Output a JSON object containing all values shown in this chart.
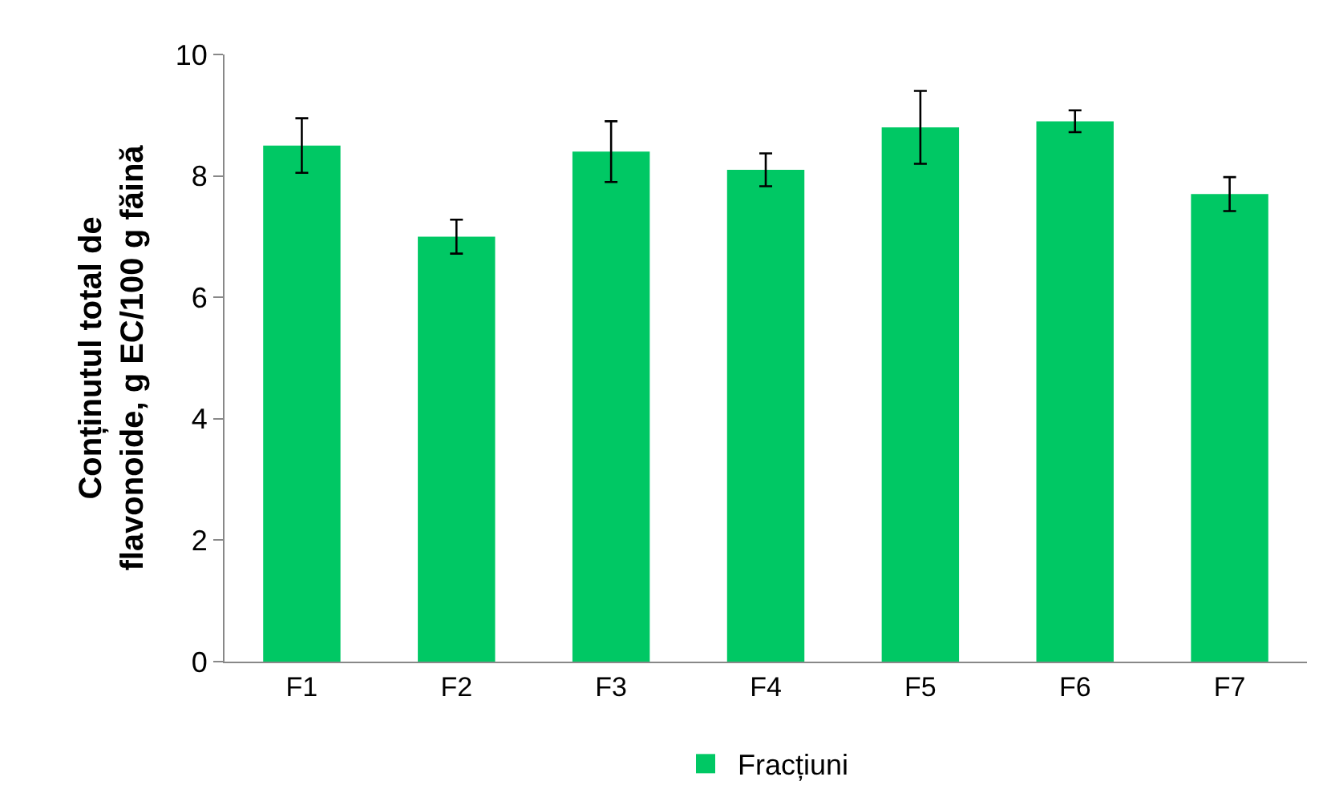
{
  "chart_data": {
    "type": "bar",
    "ylabel": "Conținutul total de\nflavonoide, g EC/100 g făină",
    "categories": [
      "F1",
      "F2",
      "F3",
      "F4",
      "F5",
      "F6",
      "F7"
    ],
    "series": [
      {
        "name": "Fracțiuni",
        "color": "#00c864",
        "values": [
          8.5,
          7.0,
          8.4,
          8.1,
          8.8,
          8.9,
          7.7
        ],
        "errors": [
          0.45,
          0.28,
          0.5,
          0.27,
          0.6,
          0.18,
          0.28
        ]
      }
    ],
    "ylim": [
      0,
      10
    ],
    "yticks": [
      0,
      2,
      4,
      6,
      8,
      10
    ],
    "grid": false,
    "legend": "bottom"
  }
}
